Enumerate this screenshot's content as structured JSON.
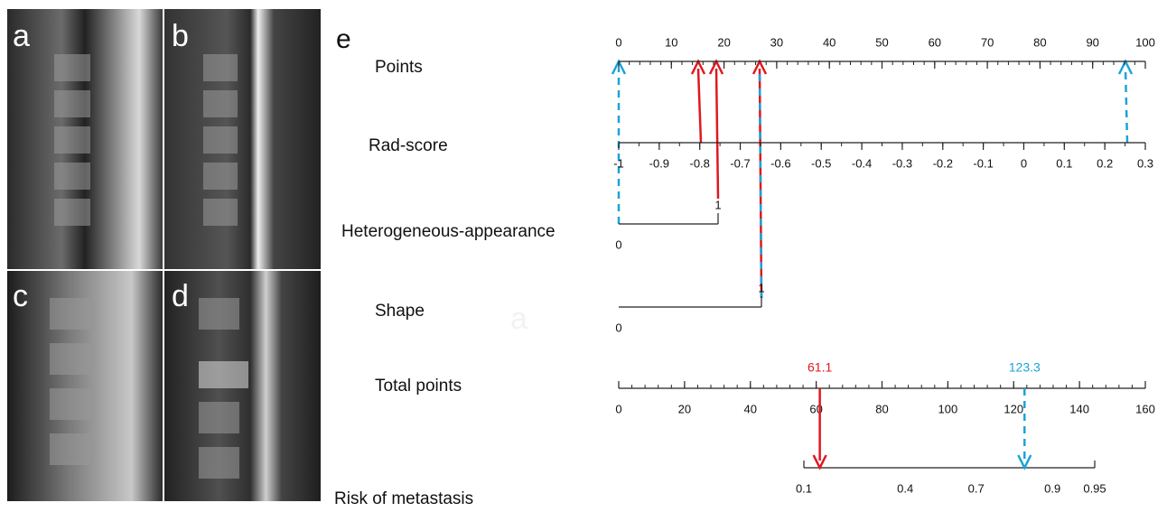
{
  "panels": {
    "labels": [
      "a",
      "b",
      "c",
      "d",
      "e"
    ]
  },
  "nomogram": {
    "rows": [
      {
        "label": "Points",
        "ticks": [
          0,
          10,
          20,
          30,
          40,
          50,
          60,
          70,
          80,
          90,
          100
        ],
        "xlim": [
          0,
          100
        ],
        "minor_step": 2
      },
      {
        "label": "Rad-score",
        "ticks": [
          -1,
          -0.9,
          -0.8,
          -0.7,
          -0.6,
          -0.5,
          -0.4,
          -0.3,
          -0.2,
          -0.1,
          0,
          0.1,
          0.2,
          0.3
        ],
        "xlim": [
          -1,
          0.3
        ],
        "minor_step": 0.05
      },
      {
        "label": "Heterogeneous-appearance",
        "ticks": [
          0,
          1
        ],
        "xlim": [
          0,
          1
        ]
      },
      {
        "label": "Shape",
        "ticks": [
          0,
          1
        ],
        "xlim": [
          0,
          1
        ]
      },
      {
        "label": "Total points",
        "ticks": [
          0,
          20,
          40,
          60,
          80,
          100,
          120,
          140,
          160
        ],
        "xlim": [
          0,
          160
        ],
        "minor_step": 4
      },
      {
        "label": "Risk of metastasis",
        "ticks": [
          0.1,
          0.4,
          0.7,
          0.9,
          0.95
        ],
        "xlim": [
          0.1,
          0.95
        ],
        "scale": "logit"
      }
    ],
    "total_markers": [
      {
        "value": 61.1,
        "label": "61.1",
        "color": "#e0181f"
      },
      {
        "value": 123.3,
        "label": "123.3",
        "color": "#1ba3d9"
      }
    ],
    "watermark": "a"
  }
}
